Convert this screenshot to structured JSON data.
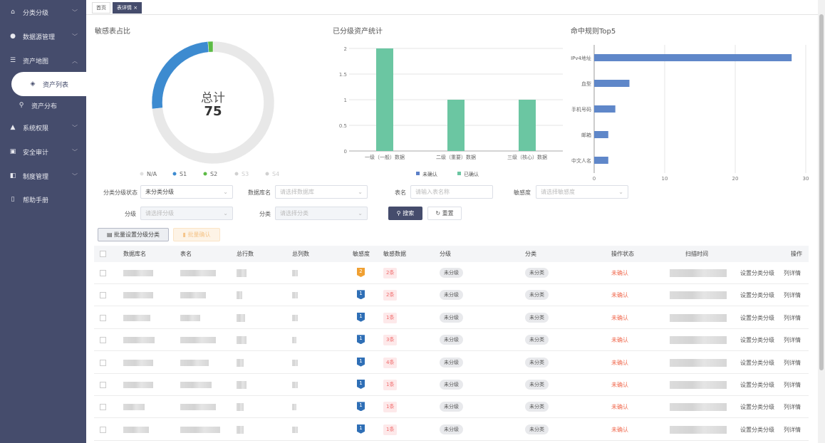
{
  "sidebar": {
    "items": [
      {
        "label": "分类分级",
        "icon": "classify-icon",
        "expand": "down"
      },
      {
        "label": "数据源管理",
        "icon": "globe-icon",
        "expand": "down"
      },
      {
        "label": "资产地图",
        "icon": "list-tree-icon",
        "expand": "up"
      },
      {
        "label": "资产列表",
        "icon": "layers-icon",
        "active": true,
        "sub": true
      },
      {
        "label": "资产分布",
        "icon": "link-icon",
        "sub": true
      },
      {
        "label": "系统权限",
        "icon": "lock-icon",
        "expand": "down"
      },
      {
        "label": "安全审计",
        "icon": "edit-doc-icon",
        "expand": "down"
      },
      {
        "label": "制度管理",
        "icon": "book-icon",
        "expand": "down"
      },
      {
        "label": "帮助手册",
        "icon": "manual-icon"
      }
    ]
  },
  "tabs": [
    {
      "label": "首页"
    },
    {
      "label": "表详情",
      "active": true,
      "close": "×"
    }
  ],
  "charts": {
    "donut": {
      "title": "敏感表占比",
      "center_label": "总计",
      "total": "75",
      "type": "pie",
      "slices": [
        {
          "name": "N/A",
          "value": 55,
          "color": "#e8e8e8"
        },
        {
          "name": "S1",
          "value": 19,
          "color": "#3d8bd0"
        },
        {
          "name": "S2",
          "value": 1,
          "color": "#5cbb45"
        },
        {
          "name": "S3",
          "value": 0,
          "color": "#d0d0d0"
        },
        {
          "name": "S4",
          "value": 0,
          "color": "#d0d0d0"
        }
      ]
    },
    "bar": {
      "title": "已分级资产统计",
      "type": "bar",
      "categories": [
        "一级（一般）数据",
        "二级（重要）数据",
        "三级（核心）数据"
      ],
      "series": [
        {
          "name": "未确认",
          "values": [
            0,
            0,
            0
          ],
          "color": "#5b7fc8"
        },
        {
          "name": "已确认",
          "values": [
            2,
            1,
            1
          ],
          "color": "#6bc6a2"
        }
      ],
      "yticks": [
        "0",
        "0.5",
        "1",
        "1.5",
        "2"
      ],
      "ylim": [
        0,
        2
      ]
    },
    "hbar": {
      "title": "命中规则Top5",
      "type": "bar",
      "orientation": "horizontal",
      "categories": [
        "IPv4地址",
        "血型",
        "手机号码",
        "邮箱",
        "中文人名"
      ],
      "values": [
        28,
        5,
        3,
        2,
        2
      ],
      "color": "#5f87c9",
      "xticks": [
        "0",
        "10",
        "20",
        "30"
      ],
      "xlim": [
        0,
        30
      ]
    }
  },
  "filters": {
    "status": {
      "label": "分类分级状态",
      "value": "未分类分级"
    },
    "db": {
      "label": "数据库名",
      "placeholder": "请选择数据库"
    },
    "table": {
      "label": "表名",
      "placeholder": "请输入表名称"
    },
    "sens": {
      "label": "敏感度",
      "placeholder": "请选择敏感度"
    },
    "level": {
      "label": "分级",
      "placeholder": "请选择分级"
    },
    "cat": {
      "label": "分类",
      "placeholder": "请选择分类"
    },
    "search": "搜索",
    "reset": "重置"
  },
  "actions": {
    "batch_set": "批量设置分级分类",
    "batch_confirm": "批量确认"
  },
  "table": {
    "headers": [
      "数据库名",
      "表名",
      "总行数",
      "总列数",
      "敏感度",
      "敏感数据",
      "分级",
      "分类",
      "操作状态",
      "扫描时间",
      "操作"
    ],
    "rows": [
      {
        "sens": "2",
        "sens_color": "#f0a032",
        "count": "2条",
        "level": "未分级",
        "cat": "未分类",
        "status": "未确认",
        "op1": "设置分类分级",
        "op2": "列详情"
      },
      {
        "sens": "1",
        "sens_color": "#2f6fb6",
        "count": "2条",
        "level": "未分级",
        "cat": "未分类",
        "status": "未确认",
        "op1": "设置分类分级",
        "op2": "列详情"
      },
      {
        "sens": "1",
        "sens_color": "#2f6fb6",
        "count": "1条",
        "level": "未分级",
        "cat": "未分类",
        "status": "未确认",
        "op1": "设置分类分级",
        "op2": "列详情"
      },
      {
        "sens": "1",
        "sens_color": "#2f6fb6",
        "count": "3条",
        "level": "未分级",
        "cat": "未分类",
        "status": "未确认",
        "op1": "设置分类分级",
        "op2": "列详情"
      },
      {
        "sens": "1",
        "sens_color": "#2f6fb6",
        "count": "4条",
        "level": "未分级",
        "cat": "未分类",
        "status": "未确认",
        "op1": "设置分类分级",
        "op2": "列详情"
      },
      {
        "sens": "1",
        "sens_color": "#2f6fb6",
        "count": "1条",
        "level": "未分级",
        "cat": "未分类",
        "status": "未确认",
        "op1": "设置分类分级",
        "op2": "列详情"
      },
      {
        "sens": "1",
        "sens_color": "#2f6fb6",
        "count": "1条",
        "level": "未分级",
        "cat": "未分类",
        "status": "未确认",
        "op1": "设置分类分级",
        "op2": "列详情"
      },
      {
        "sens": "1",
        "sens_color": "#2f6fb6",
        "count": "1条",
        "level": "未分级",
        "cat": "未分类",
        "status": "未确认",
        "op1": "设置分类分级",
        "op2": "列详情"
      }
    ]
  }
}
